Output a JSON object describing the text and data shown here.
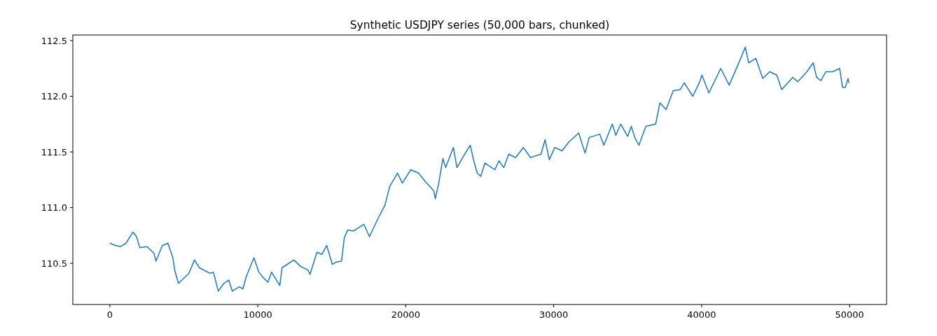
{
  "chart_data": {
    "type": "line",
    "title": "Synthetic USDJPY series (50,000 bars, chunked)",
    "xlim": [
      -2500,
      52500
    ],
    "xticks": [
      0,
      10000,
      20000,
      30000,
      40000,
      50000
    ],
    "ylim": [
      110.13,
      112.55
    ],
    "yticks": [
      {
        "value": 110.5,
        "label": "110.5"
      },
      {
        "value": 111,
        "label": "111.0"
      },
      {
        "value": 111.5,
        "label": "111.5"
      },
      {
        "value": 112,
        "label": "112.0"
      },
      {
        "value": 112.5,
        "label": "112.5"
      }
    ],
    "grid": false,
    "series": [
      {
        "color": "#1f77b4",
        "x": [
          0,
          380,
          710,
          1090,
          1560,
          1800,
          2030,
          2510,
          2980,
          3120,
          3550,
          3930,
          4260,
          4400,
          4640,
          5110,
          5340,
          5720,
          6050,
          6760,
          7000,
          7330,
          7710,
          8040,
          8280,
          8750,
          8990,
          9220,
          9740,
          10070,
          10450,
          10690,
          10930,
          11490,
          11640,
          12440,
          12910,
          13390,
          13530,
          14000,
          14330,
          14660,
          15040,
          15280,
          15660,
          15850,
          16080,
          16460,
          17170,
          17550,
          18120,
          18590,
          18920,
          19440,
          19770,
          20340,
          20860,
          21290,
          21900,
          22000,
          22230,
          22510,
          22700,
          23220,
          23460,
          24030,
          24360,
          24600,
          24830,
          25070,
          25350,
          26020,
          26300,
          26630,
          26960,
          27430,
          27950,
          28430,
          29140,
          29420,
          29700,
          30080,
          30560,
          31030,
          31690,
          32120,
          32400,
          33110,
          33390,
          33960,
          34200,
          34530,
          35000,
          35240,
          35480,
          35760,
          36230,
          36890,
          37180,
          37600,
          38080,
          38550,
          38830,
          39400,
          39870,
          40020,
          40490,
          41290,
          41860,
          42480,
          42950,
          43180,
          43660,
          44130,
          44600,
          45080,
          45410,
          46160,
          46500,
          47110,
          47540,
          47770,
          48060,
          48390,
          48860,
          49330,
          49520,
          49710,
          49900,
          49950
        ],
        "values": [
          110.68,
          110.66,
          110.65,
          110.68,
          110.78,
          110.74,
          110.64,
          110.65,
          110.59,
          110.52,
          110.66,
          110.68,
          110.55,
          110.43,
          110.32,
          110.38,
          110.41,
          110.53,
          110.46,
          110.41,
          110.42,
          110.25,
          110.32,
          110.35,
          110.25,
          110.29,
          110.27,
          110.38,
          110.55,
          110.42,
          110.36,
          110.33,
          110.42,
          110.3,
          110.46,
          110.53,
          110.47,
          110.44,
          110.4,
          110.6,
          110.58,
          110.66,
          110.49,
          110.51,
          110.52,
          110.73,
          110.8,
          110.79,
          110.85,
          110.74,
          110.9,
          111.02,
          111.19,
          111.31,
          111.22,
          111.34,
          111.31,
          111.24,
          111.15,
          111.08,
          111.22,
          111.44,
          111.36,
          111.54,
          111.36,
          111.49,
          111.56,
          111.42,
          111.31,
          111.28,
          111.4,
          111.34,
          111.42,
          111.36,
          111.48,
          111.45,
          111.54,
          111.45,
          111.48,
          111.61,
          111.43,
          111.54,
          111.51,
          111.59,
          111.67,
          111.49,
          111.63,
          111.66,
          111.56,
          111.75,
          111.65,
          111.75,
          111.64,
          111.73,
          111.63,
          111.56,
          111.73,
          111.75,
          111.94,
          111.88,
          112.05,
          112.06,
          112.12,
          112.0,
          112.13,
          112.19,
          112.03,
          112.25,
          112.1,
          112.29,
          112.44,
          112.3,
          112.34,
          112.16,
          112.22,
          112.19,
          112.06,
          112.17,
          112.13,
          112.22,
          112.3,
          112.17,
          112.14,
          112.22,
          112.22,
          112.25,
          112.08,
          112.08,
          112.16,
          112.12
        ]
      }
    ]
  }
}
